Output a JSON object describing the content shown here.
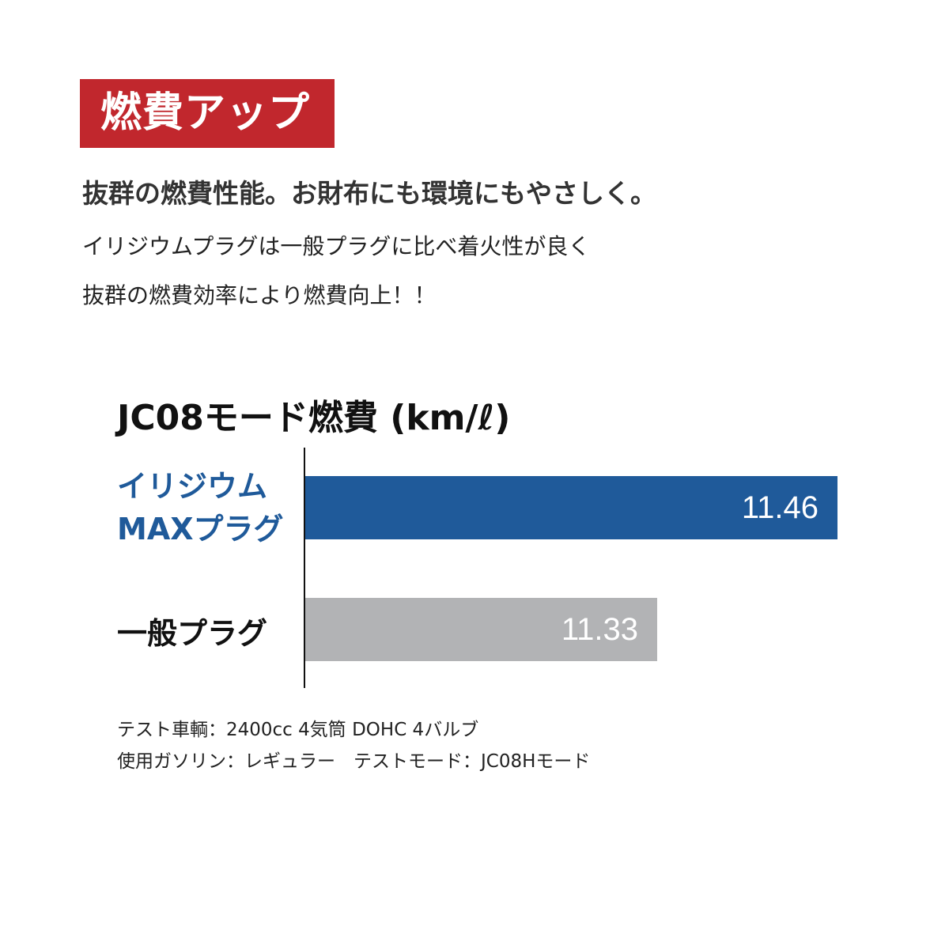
{
  "badge": "燃費アップ",
  "headline": "抜群の燃費性能。お財布にも環境にもやさしく。",
  "description": [
    "イリジウムプラグは一般プラグに比べ着火性が良く",
    "抜群の燃費効率により燃費向上！！"
  ],
  "chart_data": {
    "type": "bar",
    "orientation": "horizontal",
    "title": "JC08モード燃費 (km/ℓ)",
    "categories": [
      "イリジウム\nMAXプラグ",
      "一般プラグ"
    ],
    "category_lines": [
      [
        "イリジウム",
        "MAXプラグ"
      ],
      [
        "一般プラグ"
      ]
    ],
    "values": [
      11.46,
      11.33
    ],
    "value_labels": [
      "11.46",
      "11.33"
    ],
    "colors": [
      "#1f5a9a",
      "#b2b3b5"
    ],
    "category_colors": [
      "#1f5a9a",
      "#111111"
    ],
    "grid": false
  },
  "notes": [
    "テスト車輌：2400cc 4気筒 DOHC 4バルブ",
    "使用ガソリン：レギュラー　テストモード：JC08Hモード"
  ]
}
